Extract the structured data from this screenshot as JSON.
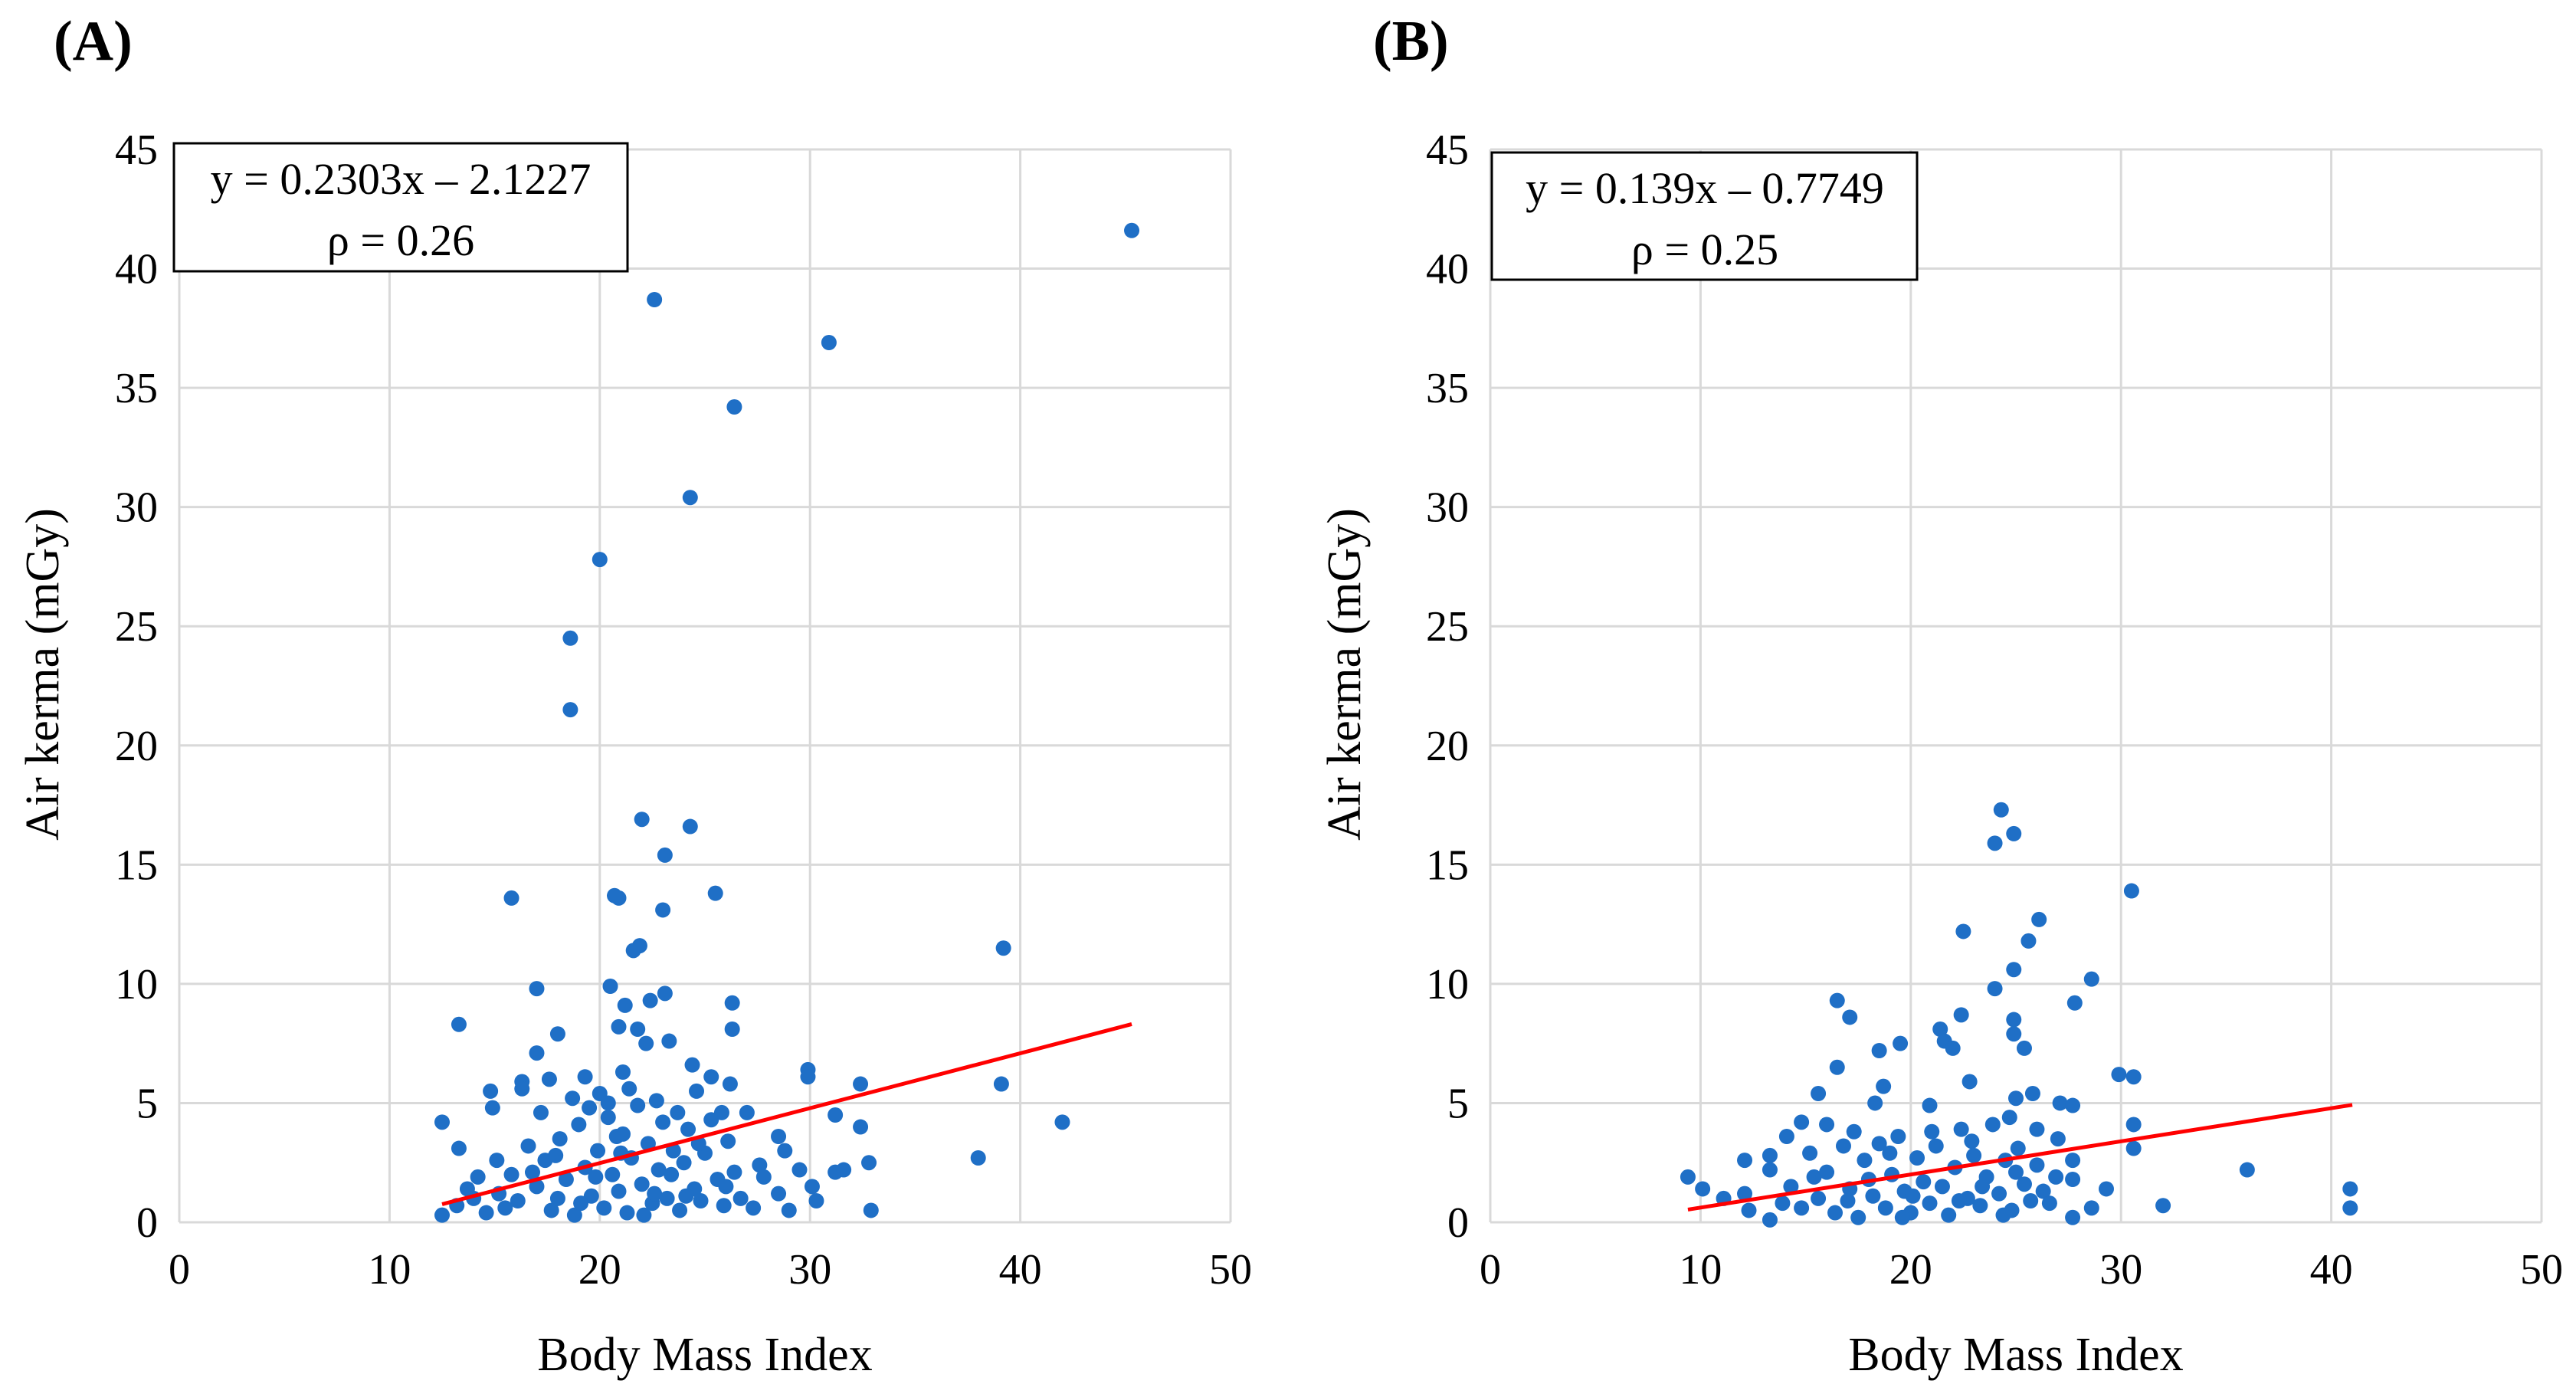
{
  "chart_data": [
    {
      "type": "scatter",
      "panel_label": "(A)",
      "xlabel": "Body Mass Index",
      "ylabel": "Air kerma (mGy)",
      "xlim": [
        0,
        50
      ],
      "ylim": [
        0,
        45
      ],
      "xticks": [
        "0",
        "10",
        "20",
        "30",
        "40",
        "50"
      ],
      "yticks": [
        "0",
        "5",
        "10",
        "15",
        "20",
        "25",
        "30",
        "35",
        "40",
        "45"
      ],
      "grid": true,
      "annotation": {
        "equation": "y = 0.2303x – 2.1227",
        "rho": "ρ = 0.26",
        "placement": "top-left"
      },
      "trendline": {
        "slope": 0.2303,
        "intercept": -2.1227,
        "x_range": [
          12.5,
          45.3
        ],
        "color": "#ff0000"
      },
      "marker_color": "#1f6fc6",
      "points": [
        [
          45.3,
          41.6
        ],
        [
          22.6,
          38.7
        ],
        [
          30.9,
          36.9
        ],
        [
          26.4,
          34.2
        ],
        [
          24.3,
          30.4
        ],
        [
          20.0,
          27.8
        ],
        [
          18.6,
          24.5
        ],
        [
          18.6,
          21.5
        ],
        [
          22.0,
          16.9
        ],
        [
          24.3,
          16.6
        ],
        [
          23.1,
          15.4
        ],
        [
          15.8,
          13.6
        ],
        [
          20.7,
          13.7
        ],
        [
          20.9,
          13.6
        ],
        [
          23.0,
          13.1
        ],
        [
          25.5,
          13.8
        ],
        [
          21.9,
          11.6
        ],
        [
          21.6,
          11.4
        ],
        [
          39.2,
          11.5
        ],
        [
          20.5,
          9.9
        ],
        [
          17.0,
          9.8
        ],
        [
          23.1,
          9.6
        ],
        [
          22.4,
          9.3
        ],
        [
          21.2,
          9.1
        ],
        [
          26.3,
          9.2
        ],
        [
          13.3,
          8.3
        ],
        [
          26.3,
          8.1
        ],
        [
          21.8,
          8.1
        ],
        [
          20.9,
          8.2
        ],
        [
          18.0,
          7.9
        ],
        [
          17.0,
          7.1
        ],
        [
          22.2,
          7.5
        ],
        [
          23.3,
          7.6
        ],
        [
          24.4,
          6.6
        ],
        [
          25.3,
          6.1
        ],
        [
          26.2,
          5.8
        ],
        [
          39.1,
          5.8
        ],
        [
          42.0,
          4.2
        ],
        [
          38.0,
          2.7
        ],
        [
          32.9,
          0.5
        ],
        [
          32.4,
          5.8
        ],
        [
          32.4,
          4.0
        ],
        [
          32.8,
          2.5
        ],
        [
          31.2,
          4.5
        ],
        [
          31.2,
          2.1
        ],
        [
          29.9,
          6.4
        ],
        [
          29.9,
          6.1
        ],
        [
          12.5,
          4.2
        ],
        [
          12.5,
          0.3
        ],
        [
          13.3,
          3.1
        ],
        [
          14.8,
          5.5
        ],
        [
          14.9,
          4.8
        ],
        [
          16.3,
          5.9
        ],
        [
          16.3,
          5.6
        ],
        [
          17.6,
          6.0
        ],
        [
          19.3,
          6.1
        ],
        [
          20.0,
          5.4
        ],
        [
          21.1,
          6.3
        ],
        [
          20.4,
          5.0
        ],
        [
          15.1,
          2.6
        ],
        [
          14.2,
          1.9
        ],
        [
          13.7,
          1.4
        ],
        [
          13.2,
          0.7
        ],
        [
          14.6,
          0.4
        ],
        [
          15.2,
          1.2
        ],
        [
          15.8,
          2.0
        ],
        [
          16.1,
          0.9
        ],
        [
          16.6,
          3.2
        ],
        [
          17.0,
          1.5
        ],
        [
          17.4,
          2.6
        ],
        [
          17.7,
          0.5
        ],
        [
          18.1,
          3.5
        ],
        [
          18.4,
          1.8
        ],
        [
          18.8,
          0.3
        ],
        [
          19.0,
          4.1
        ],
        [
          19.3,
          2.3
        ],
        [
          19.6,
          1.1
        ],
        [
          19.9,
          3.0
        ],
        [
          20.2,
          0.6
        ],
        [
          20.4,
          4.4
        ],
        [
          20.6,
          2.0
        ],
        [
          20.9,
          1.3
        ],
        [
          21.1,
          3.7
        ],
        [
          21.3,
          0.4
        ],
        [
          21.5,
          2.7
        ],
        [
          21.8,
          4.9
        ],
        [
          22.0,
          1.6
        ],
        [
          22.3,
          3.3
        ],
        [
          22.5,
          0.8
        ],
        [
          22.8,
          2.2
        ],
        [
          23.0,
          4.2
        ],
        [
          23.2,
          1.0
        ],
        [
          23.5,
          3.0
        ],
        [
          23.8,
          0.5
        ],
        [
          24.0,
          2.5
        ],
        [
          24.2,
          3.9
        ],
        [
          24.5,
          1.4
        ],
        [
          24.8,
          0.9
        ],
        [
          25.0,
          2.9
        ],
        [
          25.3,
          4.3
        ],
        [
          25.6,
          1.8
        ],
        [
          25.9,
          0.7
        ],
        [
          26.1,
          3.4
        ],
        [
          26.4,
          2.1
        ],
        [
          26.7,
          1.0
        ],
        [
          27.0,
          4.6
        ],
        [
          27.3,
          0.6
        ],
        [
          27.6,
          2.4
        ],
        [
          28.5,
          3.6
        ],
        [
          28.5,
          1.2
        ],
        [
          29.0,
          0.5
        ],
        [
          28.8,
          3.0
        ],
        [
          29.5,
          2.2
        ],
        [
          30.1,
          1.5
        ],
        [
          30.3,
          0.9
        ],
        [
          31.6,
          2.2
        ],
        [
          17.2,
          4.6
        ],
        [
          18.7,
          5.2
        ],
        [
          19.5,
          4.8
        ],
        [
          21.4,
          5.6
        ],
        [
          22.7,
          5.1
        ],
        [
          23.7,
          4.6
        ],
        [
          24.6,
          5.5
        ],
        [
          25.8,
          4.6
        ],
        [
          16.8,
          2.1
        ],
        [
          18.0,
          1.0
        ],
        [
          19.8,
          1.9
        ],
        [
          21.0,
          2.9
        ],
        [
          22.1,
          0.3
        ],
        [
          23.4,
          2.0
        ],
        [
          24.7,
          3.3
        ],
        [
          26.0,
          1.5
        ],
        [
          14.0,
          1.0
        ],
        [
          15.5,
          0.6
        ],
        [
          17.9,
          2.8
        ],
        [
          20.8,
          3.6
        ],
        [
          22.6,
          1.2
        ],
        [
          24.1,
          1.1
        ],
        [
          27.8,
          1.9
        ],
        [
          19.1,
          0.8
        ]
      ]
    },
    {
      "type": "scatter",
      "panel_label": "(B)",
      "xlabel": "Body Mass Index",
      "ylabel": "Air kerma (mGy)",
      "xlim": [
        0,
        50
      ],
      "ylim": [
        0,
        45
      ],
      "xticks": [
        "0",
        "10",
        "20",
        "30",
        "40",
        "50"
      ],
      "yticks": [
        "0",
        "5",
        "10",
        "15",
        "20",
        "25",
        "30",
        "35",
        "40",
        "45"
      ],
      "grid": true,
      "annotation": {
        "equation": "y = 0.139x – 0.7749",
        "rho": "ρ = 0.25",
        "placement": "top-left"
      },
      "trendline": {
        "slope": 0.139,
        "intercept": -0.7749,
        "x_range": [
          9.4,
          41.0
        ],
        "color": "#ff0000"
      },
      "marker_color": "#1f6fc6",
      "points": [
        [
          24.3,
          17.3
        ],
        [
          24.9,
          16.3
        ],
        [
          24.0,
          15.9
        ],
        [
          30.5,
          13.9
        ],
        [
          26.1,
          12.7
        ],
        [
          22.5,
          12.2
        ],
        [
          25.6,
          11.8
        ],
        [
          24.9,
          10.6
        ],
        [
          28.6,
          10.2
        ],
        [
          24.0,
          9.8
        ],
        [
          16.5,
          9.3
        ],
        [
          17.1,
          8.6
        ],
        [
          27.8,
          9.2
        ],
        [
          22.4,
          8.7
        ],
        [
          24.9,
          8.5
        ],
        [
          21.4,
          8.1
        ],
        [
          24.9,
          7.9
        ],
        [
          21.6,
          7.6
        ],
        [
          22.0,
          7.3
        ],
        [
          25.4,
          7.3
        ],
        [
          19.5,
          7.5
        ],
        [
          18.5,
          7.2
        ],
        [
          16.5,
          6.5
        ],
        [
          22.8,
          5.9
        ],
        [
          29.9,
          6.2
        ],
        [
          30.6,
          6.1
        ],
        [
          15.6,
          5.4
        ],
        [
          18.7,
          5.7
        ],
        [
          18.3,
          5.0
        ],
        [
          25.8,
          5.4
        ],
        [
          25.0,
          5.2
        ],
        [
          27.1,
          5.0
        ],
        [
          27.7,
          4.9
        ],
        [
          20.9,
          4.9
        ],
        [
          30.6,
          4.1
        ],
        [
          30.6,
          3.1
        ],
        [
          36.0,
          2.2
        ],
        [
          40.9,
          1.4
        ],
        [
          40.9,
          0.6
        ],
        [
          32.0,
          0.7
        ],
        [
          9.4,
          1.9
        ],
        [
          10.1,
          1.4
        ],
        [
          11.1,
          1.0
        ],
        [
          12.1,
          1.2
        ],
        [
          12.1,
          2.6
        ],
        [
          12.3,
          0.5
        ],
        [
          13.3,
          0.1
        ],
        [
          13.3,
          2.8
        ],
        [
          13.3,
          2.2
        ],
        [
          14.1,
          3.6
        ],
        [
          14.8,
          4.2
        ],
        [
          16.0,
          4.1
        ],
        [
          28.6,
          0.6
        ],
        [
          29.3,
          1.4
        ],
        [
          27.7,
          0.2
        ],
        [
          27.7,
          1.8
        ],
        [
          27.7,
          2.6
        ],
        [
          27.0,
          3.5
        ],
        [
          26.0,
          2.4
        ],
        [
          14.3,
          1.5
        ],
        [
          14.8,
          0.6
        ],
        [
          15.2,
          2.9
        ],
        [
          15.6,
          1.0
        ],
        [
          16.0,
          2.1
        ],
        [
          16.4,
          0.4
        ],
        [
          16.8,
          3.2
        ],
        [
          17.1,
          1.4
        ],
        [
          17.5,
          0.2
        ],
        [
          17.8,
          2.6
        ],
        [
          18.2,
          1.1
        ],
        [
          18.5,
          3.3
        ],
        [
          18.8,
          0.6
        ],
        [
          19.1,
          2.0
        ],
        [
          19.4,
          3.6
        ],
        [
          19.7,
          1.3
        ],
        [
          20.0,
          0.4
        ],
        [
          20.3,
          2.7
        ],
        [
          20.6,
          1.7
        ],
        [
          20.9,
          0.8
        ],
        [
          21.2,
          3.2
        ],
        [
          21.5,
          1.5
        ],
        [
          21.8,
          0.3
        ],
        [
          22.1,
          2.3
        ],
        [
          22.4,
          3.9
        ],
        [
          22.7,
          1.0
        ],
        [
          23.0,
          2.8
        ],
        [
          23.3,
          0.7
        ],
        [
          23.6,
          1.9
        ],
        [
          23.9,
          4.1
        ],
        [
          24.2,
          1.2
        ],
        [
          24.5,
          2.6
        ],
        [
          24.8,
          0.5
        ],
        [
          25.1,
          3.1
        ],
        [
          25.4,
          1.6
        ],
        [
          25.7,
          0.9
        ],
        [
          26.0,
          3.9
        ],
        [
          26.3,
          1.3
        ],
        [
          26.6,
          0.8
        ],
        [
          26.9,
          1.9
        ],
        [
          17.3,
          3.8
        ],
        [
          19.0,
          2.9
        ],
        [
          21.0,
          3.8
        ],
        [
          22.9,
          3.4
        ],
        [
          24.7,
          4.4
        ],
        [
          15.4,
          1.9
        ],
        [
          18.0,
          1.8
        ],
        [
          20.1,
          1.1
        ],
        [
          23.4,
          1.5
        ],
        [
          25.0,
          2.1
        ],
        [
          13.9,
          0.8
        ],
        [
          17.0,
          0.9
        ],
        [
          19.6,
          0.2
        ],
        [
          22.3,
          0.9
        ],
        [
          24.4,
          0.3
        ]
      ]
    }
  ]
}
